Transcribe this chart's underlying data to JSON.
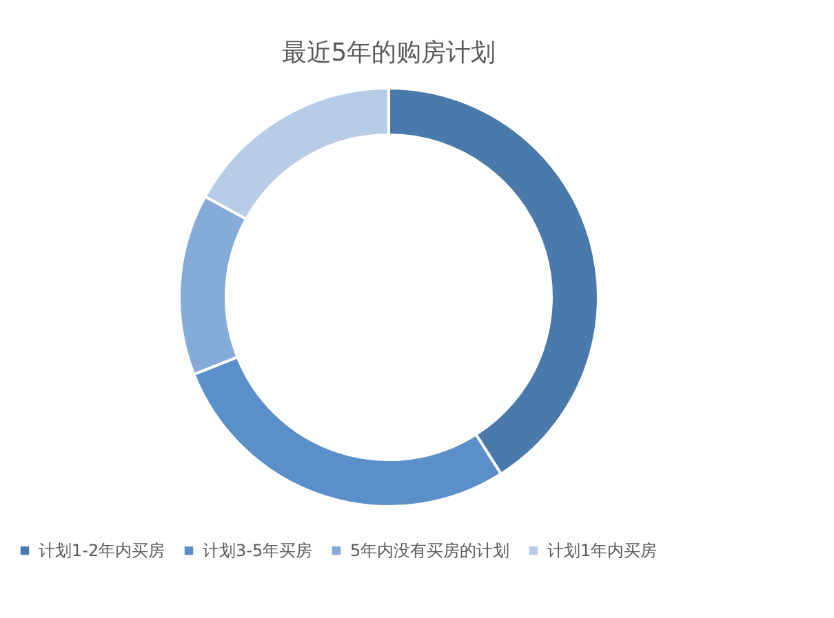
{
  "chart_data": {
    "type": "donut",
    "title": "最近5年的购房计划",
    "categories": [
      "计划1-2年内买房",
      "计划3-5年买房",
      "5年内没有买房的计划",
      "计划1年内买房"
    ],
    "values": [
      41,
      28,
      14,
      17
    ],
    "colors": [
      "#4a7aab",
      "#5b8fc9",
      "#85acd9",
      "#b7cce6"
    ],
    "legend": "bottom"
  }
}
